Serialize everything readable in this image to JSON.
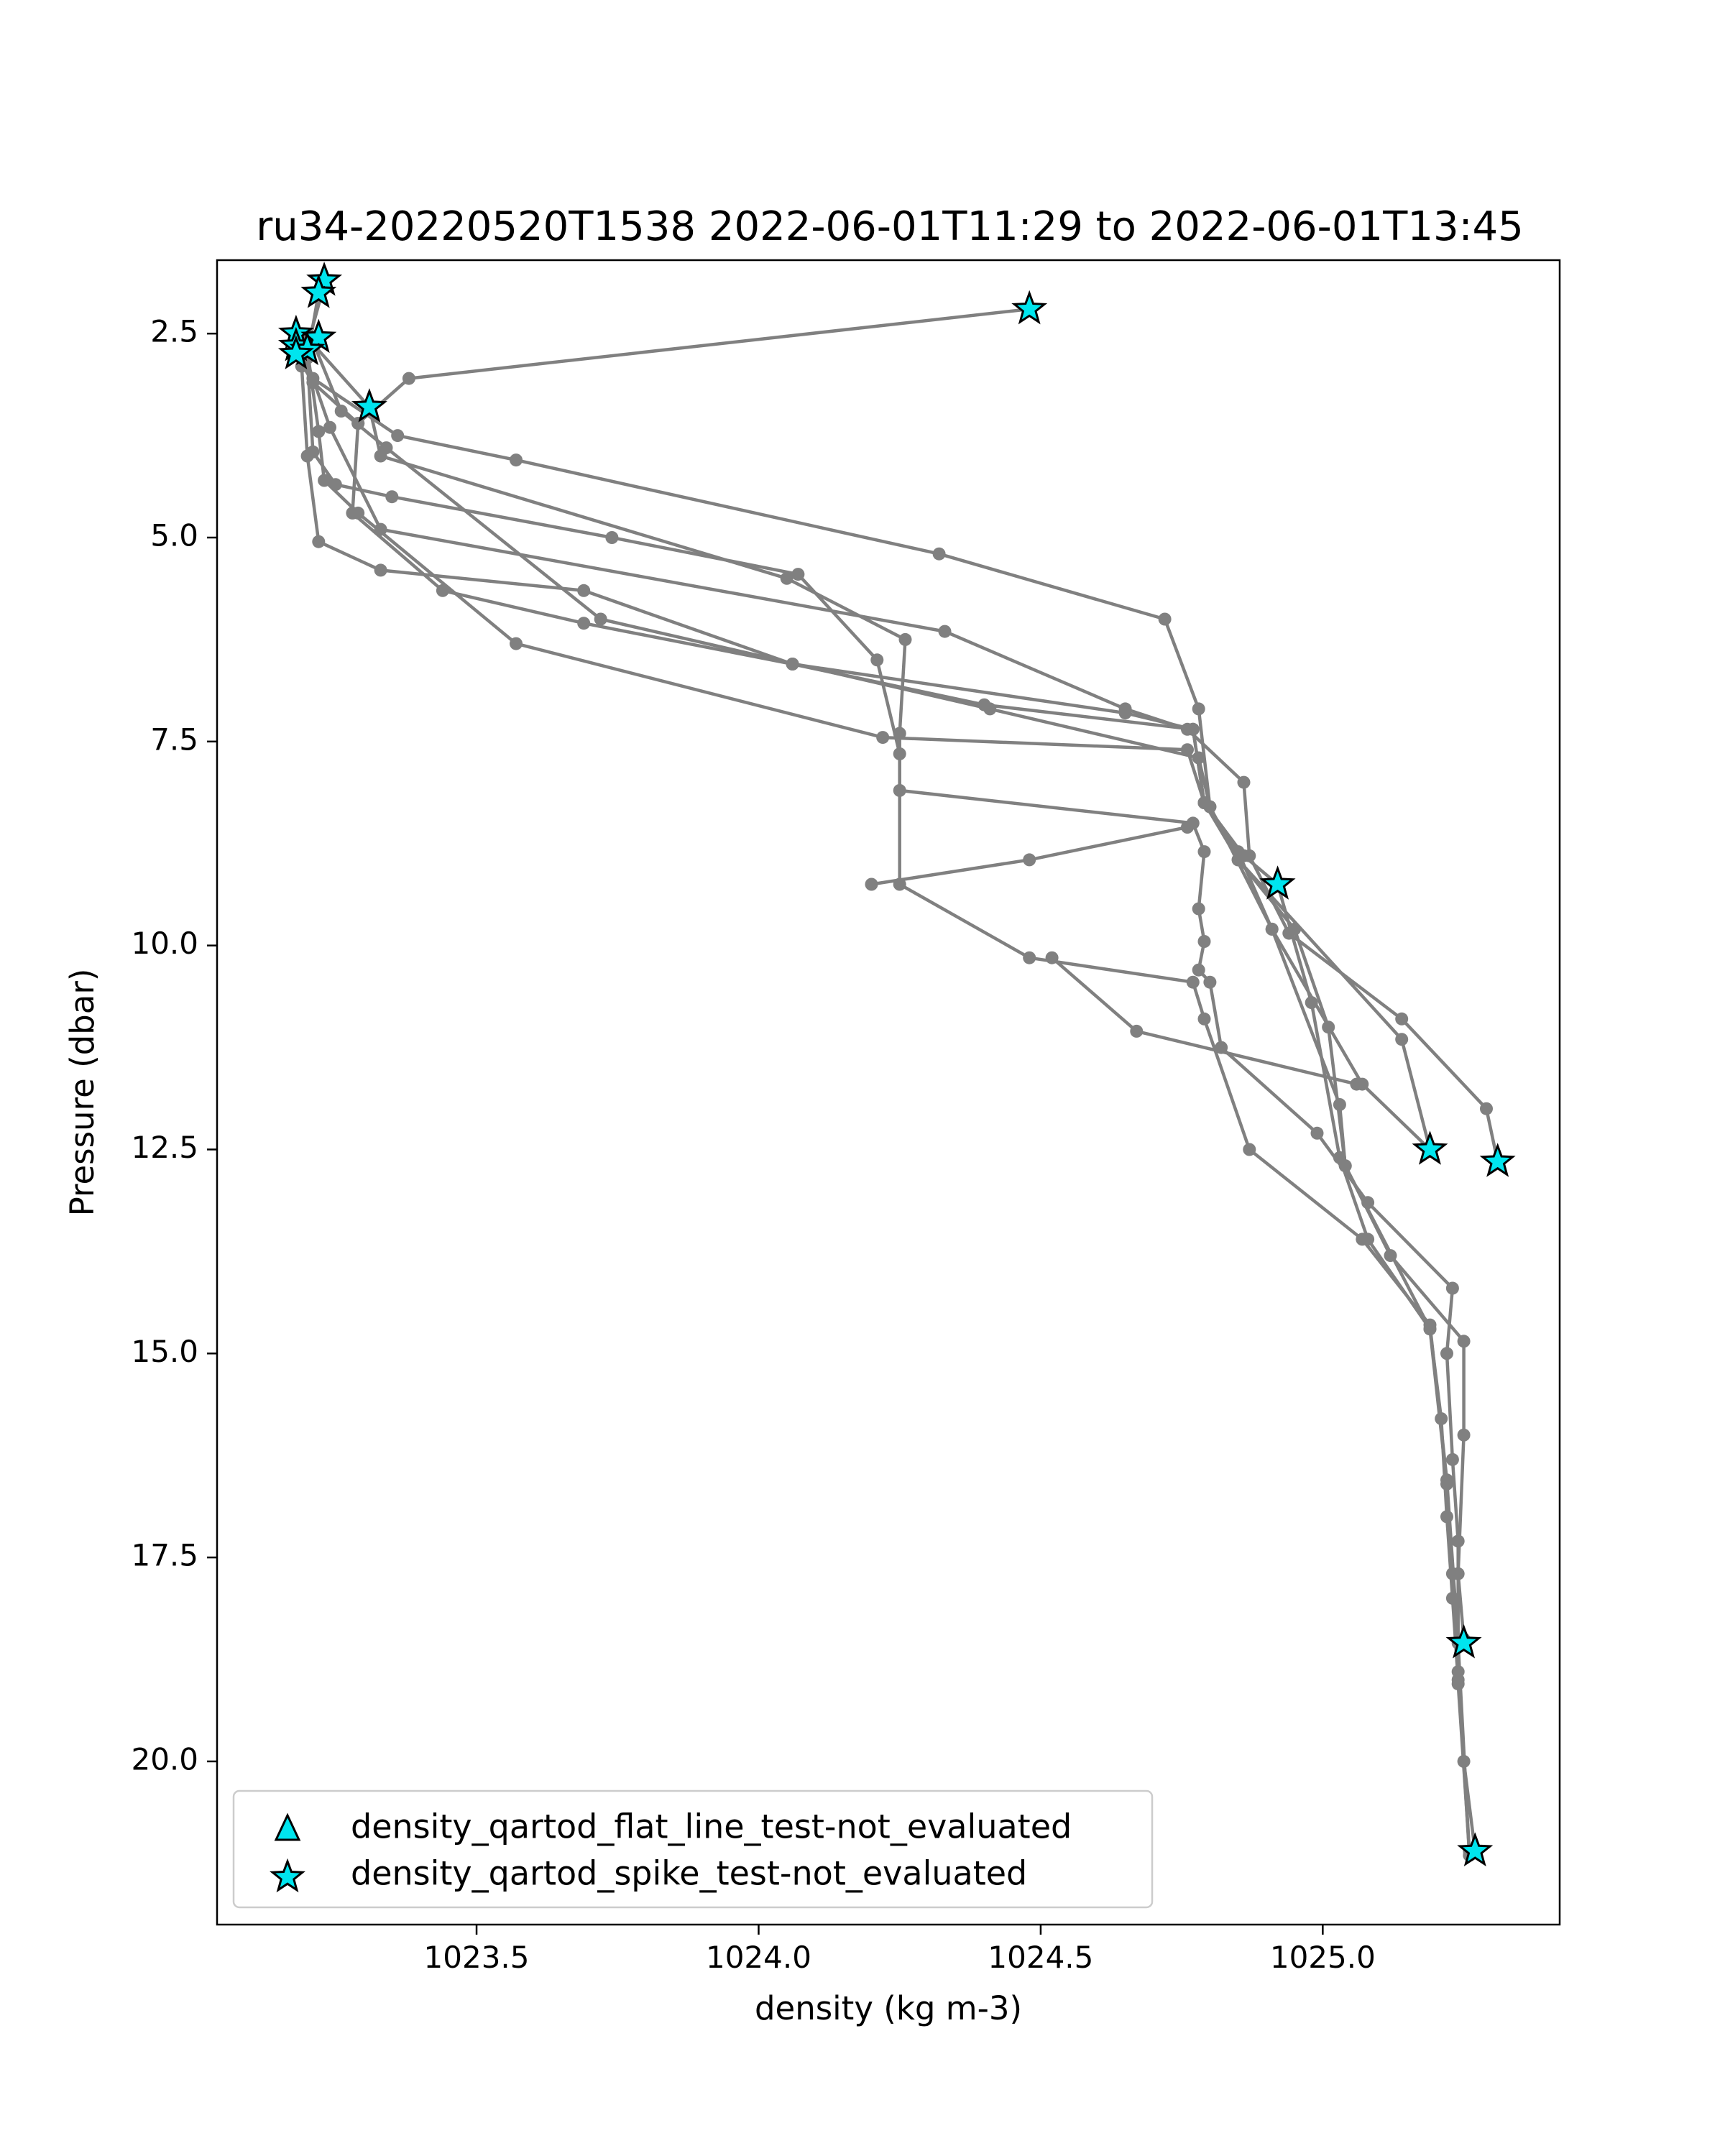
{
  "chart_data": {
    "type": "line",
    "title": "ru34-20220520T1538 2022-06-01T11:29 to 2022-06-01T13:45",
    "xlabel": "density (kg m-3)",
    "ylabel": "Pressure (dbar)",
    "xlim": [
      1023.04,
      1025.42
    ],
    "ylim": [
      22.0,
      1.6
    ],
    "y_inverted": true,
    "xticks": [
      1023.5,
      1024.0,
      1024.5,
      1025.0
    ],
    "xtick_labels": [
      "1023.5",
      "1024.0",
      "1024.5",
      "1025.0"
    ],
    "yticks": [
      2.5,
      5.0,
      7.5,
      10.0,
      12.5,
      15.0,
      17.5,
      20.0
    ],
    "ytick_labels": [
      "2.5",
      "5.0",
      "7.5",
      "10.0",
      "12.5",
      "15.0",
      "17.5",
      "20.0"
    ],
    "grid": false,
    "legend_position": "bottom-left",
    "line_color": "#808080",
    "marker_color": "#00e5ee",
    "legend": [
      {
        "marker": "triangle",
        "label": "density_qartod_flat_line_test-not_evaluated"
      },
      {
        "marker": "star",
        "label": "density_qartod_spike_test-not_evaluated"
      }
    ],
    "series": [
      {
        "points": [
          [
            1023.23,
            1.9
          ],
          [
            1023.19,
            2.9
          ],
          [
            1023.2,
            4.0
          ],
          [
            1023.22,
            5.05
          ],
          [
            1023.33,
            5.4
          ],
          [
            1023.69,
            5.65
          ],
          [
            1024.06,
            6.55
          ],
          [
            1024.4,
            7.05
          ],
          [
            1024.77,
            7.35
          ],
          [
            1024.79,
            8.25
          ],
          [
            1024.86,
            8.9
          ],
          [
            1024.92,
            9.25
          ],
          [
            1024.98,
            10.7
          ],
          [
            1025.03,
            12.6
          ],
          [
            1025.08,
            13.6
          ],
          [
            1025.19,
            14.7
          ],
          [
            1025.21,
            15.8
          ],
          [
            1025.22,
            17.0
          ],
          [
            1025.23,
            18.0
          ],
          [
            1025.24,
            19.0
          ],
          [
            1025.25,
            20.0
          ],
          [
            1025.27,
            21.1
          ]
        ]
      },
      {
        "points": [
          [
            1023.22,
            2.0
          ],
          [
            1023.2,
            2.8
          ],
          [
            1023.21,
            3.95
          ],
          [
            1023.25,
            4.35
          ],
          [
            1023.35,
            4.5
          ],
          [
            1023.74,
            5.0
          ],
          [
            1024.07,
            5.45
          ],
          [
            1024.21,
            6.5
          ],
          [
            1024.25,
            7.65
          ],
          [
            1024.25,
            9.25
          ],
          [
            1024.48,
            10.15
          ],
          [
            1024.77,
            10.45
          ],
          [
            1024.79,
            10.9
          ],
          [
            1024.87,
            12.5
          ],
          [
            1025.07,
            13.6
          ],
          [
            1025.19,
            14.65
          ],
          [
            1025.22,
            16.55
          ],
          [
            1025.24,
            18.55
          ],
          [
            1025.26,
            21.15
          ]
        ]
      },
      {
        "points": [
          [
            1023.18,
            2.5
          ],
          [
            1023.21,
            3.05
          ],
          [
            1023.36,
            3.75
          ],
          [
            1023.57,
            4.05
          ],
          [
            1024.32,
            5.2
          ],
          [
            1024.72,
            6.0
          ],
          [
            1024.78,
            7.1
          ],
          [
            1024.8,
            8.3
          ],
          [
            1024.85,
            8.95
          ],
          [
            1024.95,
            9.8
          ],
          [
            1025.01,
            11.0
          ],
          [
            1025.04,
            12.7
          ],
          [
            1025.12,
            13.8
          ],
          [
            1025.25,
            14.85
          ],
          [
            1025.25,
            16.0
          ],
          [
            1025.24,
            17.7
          ],
          [
            1025.25,
            18.5
          ]
        ]
      },
      {
        "points": [
          [
            1023.2,
            2.55
          ],
          [
            1023.31,
            3.4
          ],
          [
            1023.33,
            4.0
          ],
          [
            1024.05,
            5.5
          ],
          [
            1024.26,
            6.25
          ],
          [
            1024.25,
            7.4
          ],
          [
            1024.25,
            8.1
          ],
          [
            1024.77,
            8.5
          ],
          [
            1024.79,
            8.85
          ],
          [
            1024.78,
            9.55
          ],
          [
            1024.79,
            9.95
          ],
          [
            1024.78,
            10.3
          ],
          [
            1024.8,
            10.45
          ],
          [
            1024.82,
            11.25
          ],
          [
            1024.99,
            12.3
          ],
          [
            1025.08,
            13.15
          ],
          [
            1025.23,
            14.2
          ],
          [
            1025.22,
            15.0
          ],
          [
            1025.23,
            16.3
          ],
          [
            1025.24,
            17.3
          ],
          [
            1025.24,
            18.9
          ],
          [
            1025.26,
            21.15
          ]
        ]
      },
      {
        "points": [
          [
            1023.18,
            2.7
          ],
          [
            1023.21,
            2.6
          ],
          [
            1023.26,
            3.45
          ],
          [
            1023.34,
            3.9
          ],
          [
            1023.72,
            6.0
          ],
          [
            1024.41,
            7.1
          ],
          [
            1024.78,
            7.7
          ],
          [
            1024.8,
            8.3
          ],
          [
            1024.91,
            9.8
          ],
          [
            1025.07,
            11.7
          ],
          [
            1025.19,
            12.5
          ]
        ]
      },
      {
        "points": [
          [
            1023.19,
            2.65
          ],
          [
            1023.24,
            3.65
          ],
          [
            1023.33,
            4.9
          ],
          [
            1024.33,
            6.15
          ],
          [
            1024.65,
            7.1
          ],
          [
            1024.76,
            7.35
          ],
          [
            1024.86,
            8.0
          ],
          [
            1024.87,
            8.9
          ],
          [
            1024.94,
            9.85
          ],
          [
            1025.14,
            10.9
          ],
          [
            1025.29,
            12.0
          ],
          [
            1025.31,
            12.65
          ]
        ]
      },
      {
        "points": [
          [
            1023.2,
            2.7
          ],
          [
            1023.22,
            3.7
          ],
          [
            1023.23,
            4.3
          ],
          [
            1023.29,
            4.7
          ],
          [
            1023.57,
            6.3
          ],
          [
            1024.22,
            7.45
          ],
          [
            1024.76,
            7.6
          ],
          [
            1024.79,
            8.25
          ],
          [
            1024.85,
            8.95
          ],
          [
            1025.14,
            11.15
          ],
          [
            1025.19,
            12.5
          ]
        ]
      },
      {
        "points": [
          [
            1023.2,
            2.6
          ],
          [
            1023.18,
            2.75
          ],
          [
            1023.21,
            3.1
          ],
          [
            1023.29,
            3.6
          ],
          [
            1023.28,
            4.7
          ],
          [
            1023.44,
            5.65
          ],
          [
            1023.69,
            6.05
          ],
          [
            1024.06,
            6.55
          ],
          [
            1024.65,
            7.15
          ],
          [
            1024.77,
            7.35
          ],
          [
            1024.79,
            8.25
          ],
          [
            1024.85,
            8.85
          ],
          [
            1024.91,
            9.8
          ],
          [
            1025.03,
            11.95
          ],
          [
            1025.04,
            12.7
          ],
          [
            1025.19,
            14.7
          ],
          [
            1025.22,
            16.6
          ],
          [
            1025.23,
            17.7
          ],
          [
            1025.24,
            19.05
          ],
          [
            1025.26,
            21.1
          ]
        ]
      },
      {
        "points": [
          [
            1024.48,
            2.2
          ],
          [
            1023.38,
            3.05
          ],
          [
            1023.29,
            3.6
          ],
          [
            1023.31,
            3.4
          ]
        ]
      },
      {
        "points": [
          [
            1024.76,
            8.55
          ],
          [
            1024.48,
            8.95
          ],
          [
            1024.2,
            9.25
          ]
        ]
      },
      {
        "points": [
          [
            1024.52,
            10.15
          ],
          [
            1024.67,
            11.05
          ],
          [
            1025.06,
            11.7
          ]
        ]
      }
    ],
    "stars": [
      [
        1023.23,
        1.85
      ],
      [
        1023.22,
        2.0
      ],
      [
        1023.18,
        2.5
      ],
      [
        1023.22,
        2.55
      ],
      [
        1023.18,
        2.65
      ],
      [
        1023.2,
        2.7
      ],
      [
        1023.18,
        2.75
      ],
      [
        1024.48,
        2.2
      ],
      [
        1023.31,
        3.4
      ],
      [
        1024.92,
        9.25
      ],
      [
        1025.19,
        12.5
      ],
      [
        1025.31,
        12.65
      ],
      [
        1025.25,
        18.55
      ],
      [
        1025.27,
        21.1
      ]
    ]
  }
}
